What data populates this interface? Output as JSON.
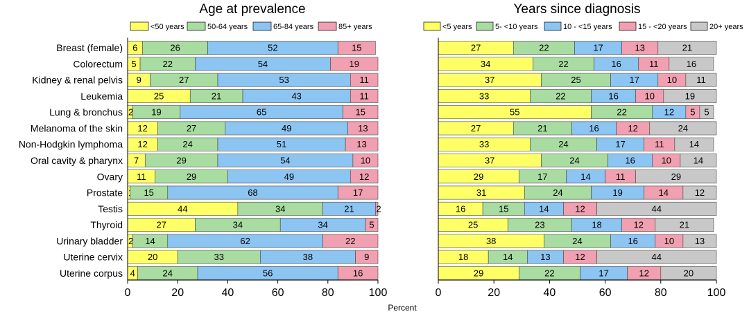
{
  "figure": {
    "xlabel": "Percent"
  },
  "chart_data": [
    {
      "type": "bar",
      "orientation": "horizontal-stacked",
      "title": "Age at prevalence",
      "xlabel": "",
      "xlim": [
        0,
        100
      ],
      "xticks": [
        0,
        20,
        40,
        60,
        80,
        100
      ],
      "legend_position": "top",
      "categories": [
        "Breast (female)",
        "Colorectum",
        "Kidney & renal pelvis",
        "Leukemia",
        "Lung & bronchus",
        "Melanoma of the skin",
        "Non-Hodgkin lymphoma",
        "Oral cavity & pharynx",
        "Ovary",
        "Prostate",
        "Testis",
        "Thyroid",
        "Urinary bladder",
        "Uterine cervix",
        "Uterine corpus"
      ],
      "series": [
        {
          "name": "<50 years",
          "color": "#ffff66",
          "values": [
            6,
            5,
            9,
            25,
            2,
            12,
            12,
            7,
            11,
            1,
            44,
            27,
            2,
            20,
            4
          ]
        },
        {
          "name": "50-64 years",
          "color": "#a8dca0",
          "values": [
            26,
            22,
            27,
            21,
            19,
            27,
            24,
            29,
            29,
            15,
            34,
            34,
            14,
            33,
            24
          ]
        },
        {
          "name": "65-84 years",
          "color": "#8cc4f2",
          "values": [
            52,
            54,
            53,
            43,
            65,
            49,
            51,
            54,
            49,
            68,
            21,
            34,
            62,
            38,
            56
          ]
        },
        {
          "name": "85+ years",
          "color": "#f0a0b0",
          "values": [
            15,
            19,
            11,
            11,
            15,
            13,
            13,
            10,
            12,
            17,
            2,
            5,
            22,
            9,
            16
          ]
        }
      ]
    },
    {
      "type": "bar",
      "orientation": "horizontal-stacked",
      "title": "Years since diagnosis",
      "xlabel": "",
      "xlim": [
        0,
        100
      ],
      "xticks": [
        0,
        20,
        40,
        60,
        80,
        100
      ],
      "legend_position": "top",
      "categories": [
        "Breast (female)",
        "Colorectum",
        "Kidney & renal pelvis",
        "Leukemia",
        "Lung & bronchus",
        "Melanoma of the skin",
        "Non-Hodgkin lymphoma",
        "Oral cavity & pharynx",
        "Ovary",
        "Prostate",
        "Testis",
        "Thyroid",
        "Urinary bladder",
        "Uterine cervix",
        "Uterine corpus"
      ],
      "series": [
        {
          "name": "<5 years",
          "color": "#ffff66",
          "values": [
            27,
            34,
            37,
            33,
            55,
            27,
            33,
            37,
            29,
            31,
            16,
            25,
            38,
            18,
            29
          ]
        },
        {
          "name": "5- <10 years",
          "color": "#a8dca0",
          "values": [
            22,
            22,
            25,
            22,
            22,
            21,
            24,
            24,
            17,
            24,
            15,
            23,
            24,
            14,
            22
          ]
        },
        {
          "name": "10 - <15 years",
          "color": "#8cc4f2",
          "values": [
            17,
            16,
            17,
            16,
            12,
            16,
            17,
            16,
            14,
            19,
            14,
            18,
            16,
            13,
            17
          ]
        },
        {
          "name": "15 - <20 years",
          "color": "#f0a0b0",
          "values": [
            13,
            11,
            10,
            10,
            5,
            12,
            11,
            10,
            11,
            14,
            12,
            12,
            10,
            12,
            12
          ]
        },
        {
          "name": "20+ years",
          "color": "#c8c8c8",
          "values": [
            21,
            16,
            11,
            19,
            5,
            24,
            14,
            14,
            29,
            12,
            44,
            21,
            13,
            44,
            20
          ]
        }
      ]
    }
  ]
}
